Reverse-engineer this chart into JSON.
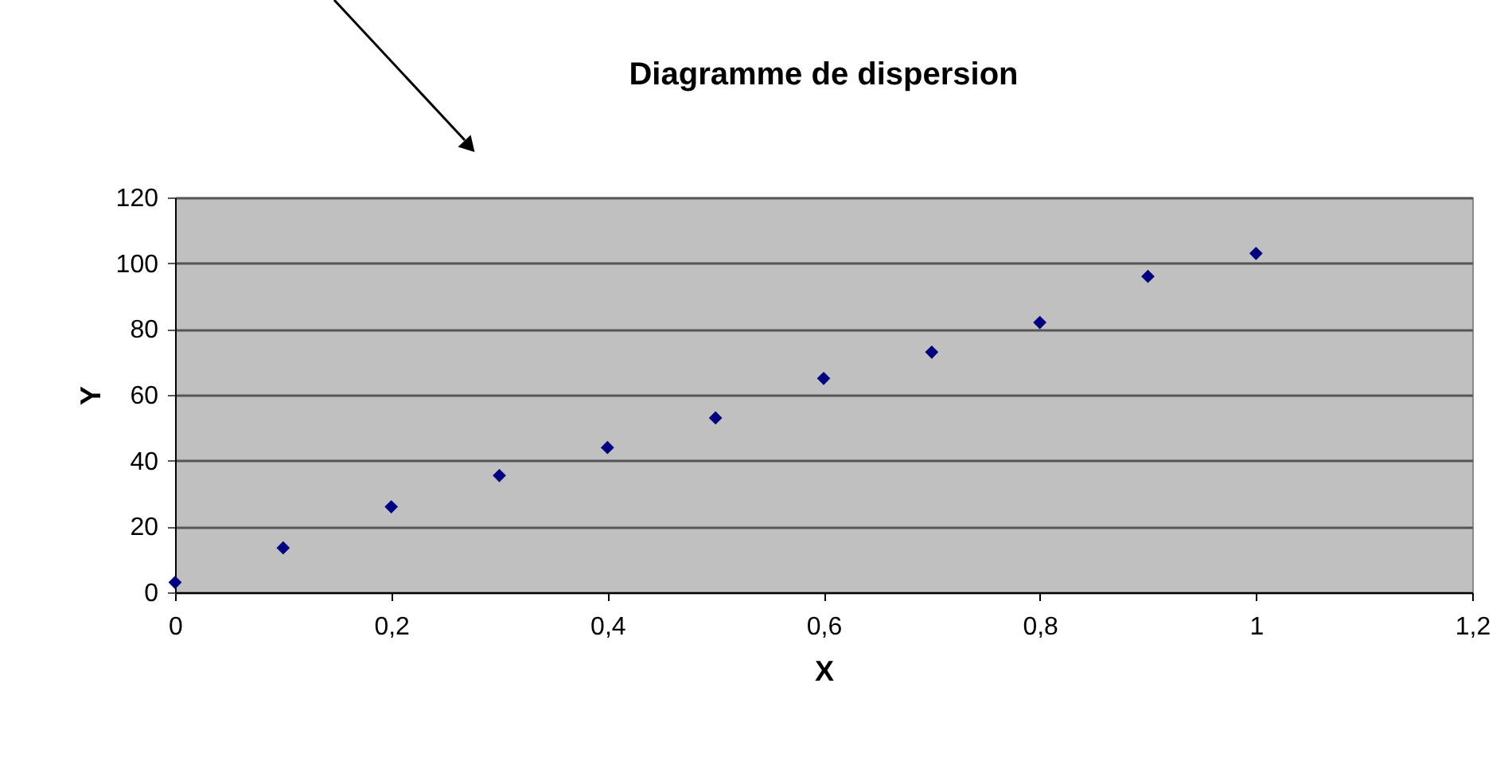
{
  "chart_data": {
    "type": "scatter",
    "title": "Diagramme de dispersion",
    "xlabel": "X",
    "ylabel": "Y",
    "x": [
      0,
      0.1,
      0.2,
      0.3,
      0.4,
      0.5,
      0.6,
      0.7,
      0.8,
      0.9,
      1.0
    ],
    "series": [
      {
        "color": "#000080",
        "values": [
          3,
          13.5,
          26,
          35.5,
          44,
          53,
          65,
          73,
          82,
          96,
          103
        ]
      }
    ],
    "xlim": [
      0,
      1.2
    ],
    "xticks": [
      0,
      {
        "value": 0.2,
        "label": "0,2"
      },
      {
        "value": 0.4,
        "label": "0,4"
      },
      {
        "value": 0.6,
        "label": "0,6"
      },
      {
        "value": 0.8,
        "label": "0,8"
      },
      1,
      {
        "value": 1.2,
        "label": "1,2"
      }
    ],
    "ylim": [
      0,
      120
    ],
    "yticks": [
      0,
      20,
      40,
      60,
      80,
      100,
      120
    ],
    "grid": "y",
    "marker": "diamond",
    "legend": false
  }
}
